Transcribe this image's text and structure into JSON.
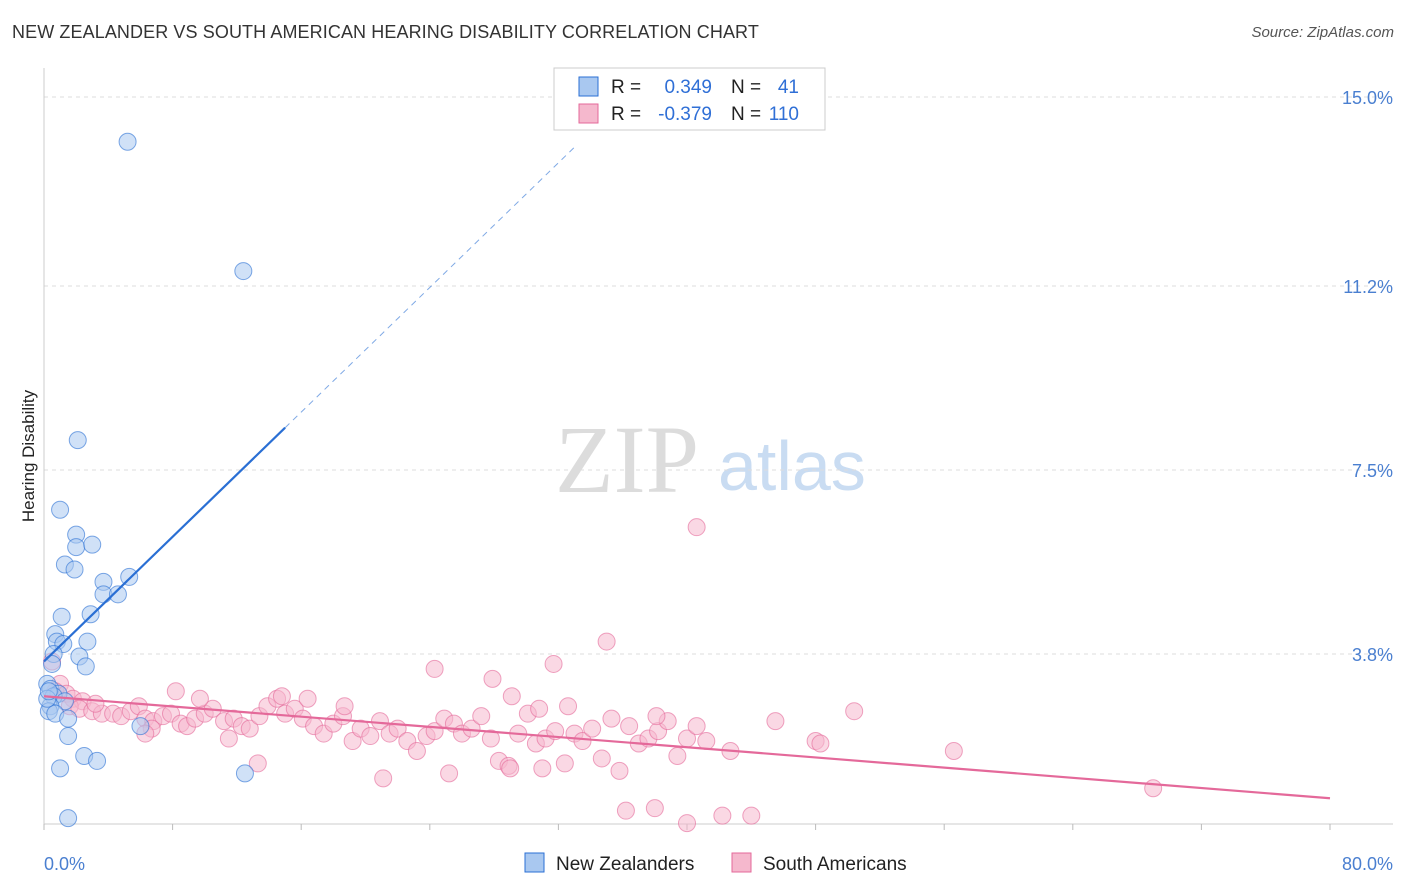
{
  "title": "NEW ZEALANDER VS SOUTH AMERICAN HEARING DISABILITY CORRELATION CHART",
  "source": "Source: ZipAtlas.com",
  "watermark": {
    "bold": "ZIP",
    "light": "atlas"
  },
  "legend": {
    "rows": [
      {
        "r_label": "R =",
        "r_value": "0.349",
        "n_label": "N =",
        "n_value": "41"
      },
      {
        "r_label": "R =",
        "r_value": "-0.379",
        "n_label": "N =",
        "n_value": "110"
      }
    ]
  },
  "colors": {
    "blue": "#2a6fd4",
    "blue_fill": "#a9c8f0",
    "pink": "#e4699a",
    "pink_fill": "#f5b8cd",
    "tick_text": "#4a7fd0",
    "grid": "#dddddd"
  },
  "chart_data": {
    "type": "scatter",
    "title": "NEW ZEALANDER VS SOUTH AMERICAN HEARING DISABILITY CORRELATION CHART",
    "xlabel": "",
    "ylabel": "Hearing Disability",
    "xlim": [
      0,
      80
    ],
    "ylim": [
      0,
      15.5
    ],
    "x_tick_labels": [
      "0.0%",
      "80.0%"
    ],
    "y_ticks": [
      3.8,
      7.5,
      11.2,
      15.0
    ],
    "y_tick_labels": [
      "3.8%",
      "7.5%",
      "11.2%",
      "15.0%"
    ],
    "series": [
      {
        "name": "New Zealanders",
        "color": "#2a6fd4",
        "r": 0.349,
        "n": 41,
        "trend": {
          "x0": 0.0,
          "y0": 3.65,
          "x1": 15.0,
          "y1": 8.35,
          "dash_to_x": 33.0
        },
        "points": [
          [
            5.2,
            14.1
          ],
          [
            12.4,
            11.5
          ],
          [
            2.1,
            8.1
          ],
          [
            1.0,
            6.7
          ],
          [
            2.0,
            6.2
          ],
          [
            2.0,
            5.95
          ],
          [
            3.0,
            6.0
          ],
          [
            1.3,
            5.6
          ],
          [
            1.9,
            5.5
          ],
          [
            3.7,
            5.25
          ],
          [
            5.3,
            5.35
          ],
          [
            3.7,
            5.0
          ],
          [
            4.6,
            5.0
          ],
          [
            1.1,
            4.55
          ],
          [
            2.9,
            4.6
          ],
          [
            0.7,
            4.2
          ],
          [
            0.8,
            4.05
          ],
          [
            1.2,
            4.0
          ],
          [
            2.7,
            4.05
          ],
          [
            0.6,
            3.8
          ],
          [
            0.5,
            3.6
          ],
          [
            2.2,
            3.75
          ],
          [
            2.6,
            3.55
          ],
          [
            0.2,
            3.2
          ],
          [
            0.4,
            3.1
          ],
          [
            0.9,
            3.0
          ],
          [
            0.6,
            2.95
          ],
          [
            1.3,
            2.85
          ],
          [
            0.4,
            2.75
          ],
          [
            0.3,
            2.65
          ],
          [
            0.7,
            2.6
          ],
          [
            1.5,
            2.5
          ],
          [
            6.0,
            2.35
          ],
          [
            1.5,
            2.15
          ],
          [
            2.5,
            1.75
          ],
          [
            3.3,
            1.65
          ],
          [
            1.0,
            1.5
          ],
          [
            12.5,
            1.4
          ],
          [
            1.5,
            0.5
          ],
          [
            0.2,
            2.9
          ],
          [
            0.3,
            3.05
          ]
        ]
      },
      {
        "name": "South Americans",
        "color": "#e4699a",
        "r": -0.379,
        "n": 110,
        "trend": {
          "x0": 0.0,
          "y0": 2.95,
          "x1": 80.0,
          "y1": 0.9
        },
        "points": [
          [
            0.5,
            3.65
          ],
          [
            1.0,
            3.2
          ],
          [
            0.7,
            3.05
          ],
          [
            1.4,
            3.0
          ],
          [
            1.8,
            2.9
          ],
          [
            2.4,
            2.85
          ],
          [
            1.6,
            2.75
          ],
          [
            2.2,
            2.7
          ],
          [
            3.0,
            2.65
          ],
          [
            3.6,
            2.6
          ],
          [
            4.3,
            2.6
          ],
          [
            4.8,
            2.55
          ],
          [
            5.4,
            2.65
          ],
          [
            5.9,
            2.75
          ],
          [
            6.3,
            2.5
          ],
          [
            6.8,
            2.45
          ],
          [
            7.4,
            2.55
          ],
          [
            7.9,
            2.6
          ],
          [
            8.5,
            2.4
          ],
          [
            8.9,
            2.35
          ],
          [
            9.4,
            2.5
          ],
          [
            10.0,
            2.6
          ],
          [
            10.5,
            2.7
          ],
          [
            11.2,
            2.45
          ],
          [
            11.8,
            2.5
          ],
          [
            12.3,
            2.35
          ],
          [
            12.8,
            2.3
          ],
          [
            13.4,
            2.55
          ],
          [
            13.9,
            2.75
          ],
          [
            14.5,
            2.9
          ],
          [
            15.0,
            2.6
          ],
          [
            15.6,
            2.7
          ],
          [
            16.1,
            2.5
          ],
          [
            16.8,
            2.35
          ],
          [
            17.4,
            2.2
          ],
          [
            18.0,
            2.4
          ],
          [
            18.6,
            2.55
          ],
          [
            19.2,
            2.05
          ],
          [
            19.7,
            2.3
          ],
          [
            20.3,
            2.15
          ],
          [
            20.9,
            2.45
          ],
          [
            21.5,
            2.2
          ],
          [
            22.0,
            2.3
          ],
          [
            22.6,
            2.05
          ],
          [
            23.2,
            1.85
          ],
          [
            23.8,
            2.15
          ],
          [
            24.3,
            2.25
          ],
          [
            24.9,
            2.5
          ],
          [
            25.5,
            2.4
          ],
          [
            26.0,
            2.2
          ],
          [
            26.6,
            2.3
          ],
          [
            27.2,
            2.55
          ],
          [
            27.8,
            2.1
          ],
          [
            28.3,
            1.65
          ],
          [
            28.9,
            1.55
          ],
          [
            29.5,
            2.2
          ],
          [
            30.1,
            2.6
          ],
          [
            30.6,
            2.0
          ],
          [
            31.2,
            2.1
          ],
          [
            31.8,
            2.25
          ],
          [
            32.4,
            1.6
          ],
          [
            33.0,
            2.2
          ],
          [
            33.5,
            2.05
          ],
          [
            34.1,
            2.3
          ],
          [
            34.7,
            1.7
          ],
          [
            35.3,
            2.5
          ],
          [
            35.8,
            1.45
          ],
          [
            36.4,
            2.35
          ],
          [
            37.0,
            2.0
          ],
          [
            37.6,
            2.1
          ],
          [
            38.2,
            2.25
          ],
          [
            38.8,
            2.45
          ],
          [
            39.4,
            1.75
          ],
          [
            40.0,
            2.1
          ],
          [
            40.6,
            2.35
          ],
          [
            41.2,
            2.05
          ],
          [
            6.7,
            2.3
          ],
          [
            3.2,
            2.8
          ],
          [
            8.2,
            3.05
          ],
          [
            9.7,
            2.9
          ],
          [
            14.8,
            2.95
          ],
          [
            16.4,
            2.9
          ],
          [
            18.7,
            2.75
          ],
          [
            24.3,
            3.5
          ],
          [
            27.9,
            3.3
          ],
          [
            29.1,
            2.95
          ],
          [
            30.8,
            2.7
          ],
          [
            31.7,
            3.6
          ],
          [
            32.6,
            2.75
          ],
          [
            38.1,
            2.55
          ],
          [
            35.0,
            4.05
          ],
          [
            40.6,
            6.35
          ],
          [
            42.7,
            1.85
          ],
          [
            45.5,
            2.45
          ],
          [
            48.0,
            2.05
          ],
          [
            48.3,
            2.0
          ],
          [
            50.4,
            2.65
          ],
          [
            56.6,
            1.85
          ],
          [
            69.0,
            1.1
          ],
          [
            21.1,
            1.3
          ],
          [
            25.2,
            1.4
          ],
          [
            29.0,
            1.5
          ],
          [
            31.0,
            1.5
          ],
          [
            36.2,
            0.65
          ],
          [
            38.0,
            0.7
          ],
          [
            40.0,
            0.4
          ],
          [
            42.2,
            0.55
          ],
          [
            44.0,
            0.55
          ],
          [
            6.3,
            2.2
          ],
          [
            11.5,
            2.1
          ],
          [
            13.3,
            1.6
          ]
        ]
      }
    ]
  },
  "bottom_legend": [
    "New Zealanders",
    "South Americans"
  ]
}
